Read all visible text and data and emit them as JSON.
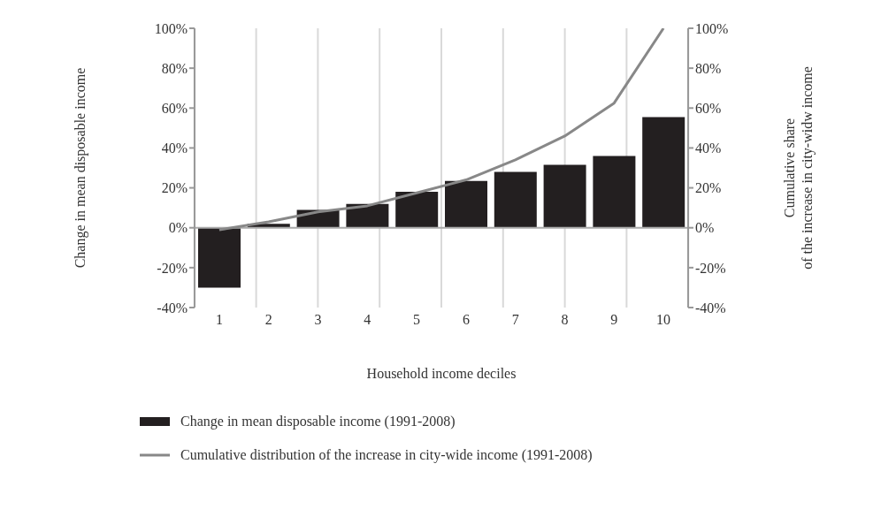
{
  "chart_data": {
    "type": "bar",
    "xlabel": "Household income deciles",
    "ylabel": "Change in mean disposable income",
    "y2label": "Cumulative share\nof the increase in city-widw income",
    "categories": [
      "1",
      "2",
      "3",
      "4",
      "5",
      "6",
      "7",
      "8",
      "9",
      "10"
    ],
    "series": [
      {
        "name": "Change in mean disposable income (1991-2008)",
        "color": "#231f20",
        "values": [
          -30,
          2,
          9,
          12,
          18,
          23.5,
          28,
          31.5,
          36,
          55.5
        ]
      },
      {
        "name": "Cumulative distribution of the increase in city-wide income (1991-2008)",
        "type": "line",
        "axis": "y2",
        "color": "#888888",
        "values": [
          -1,
          3,
          8,
          11,
          17.5,
          24,
          34,
          46,
          62.5,
          100
        ]
      }
    ],
    "ylim": [
      -40,
      100
    ],
    "yticks": [
      {
        "value": -40,
        "label": "-40%"
      },
      {
        "value": -20,
        "label": "-20%"
      },
      {
        "value": 0,
        "label": "0%"
      },
      {
        "value": 20,
        "label": "20%"
      },
      {
        "value": 40,
        "label": "40%"
      },
      {
        "value": 60,
        "label": "60%"
      },
      {
        "value": 80,
        "label": "80%"
      },
      {
        "value": 100,
        "label": "100%"
      }
    ],
    "y2lim": [
      -40,
      100
    ],
    "y2ticks": [
      {
        "value": -40,
        "label": "-40%"
      },
      {
        "value": -20,
        "label": "-20%"
      },
      {
        "value": 0,
        "label": "0%"
      },
      {
        "value": 20,
        "label": "20%"
      },
      {
        "value": 40,
        "label": "40%"
      },
      {
        "value": 60,
        "label": "60%"
      },
      {
        "value": 80,
        "label": "80%"
      },
      {
        "value": 100,
        "label": "100%"
      }
    ],
    "grid": "x",
    "legend": "bottom",
    "marker": "none",
    "line_style": "solid"
  }
}
